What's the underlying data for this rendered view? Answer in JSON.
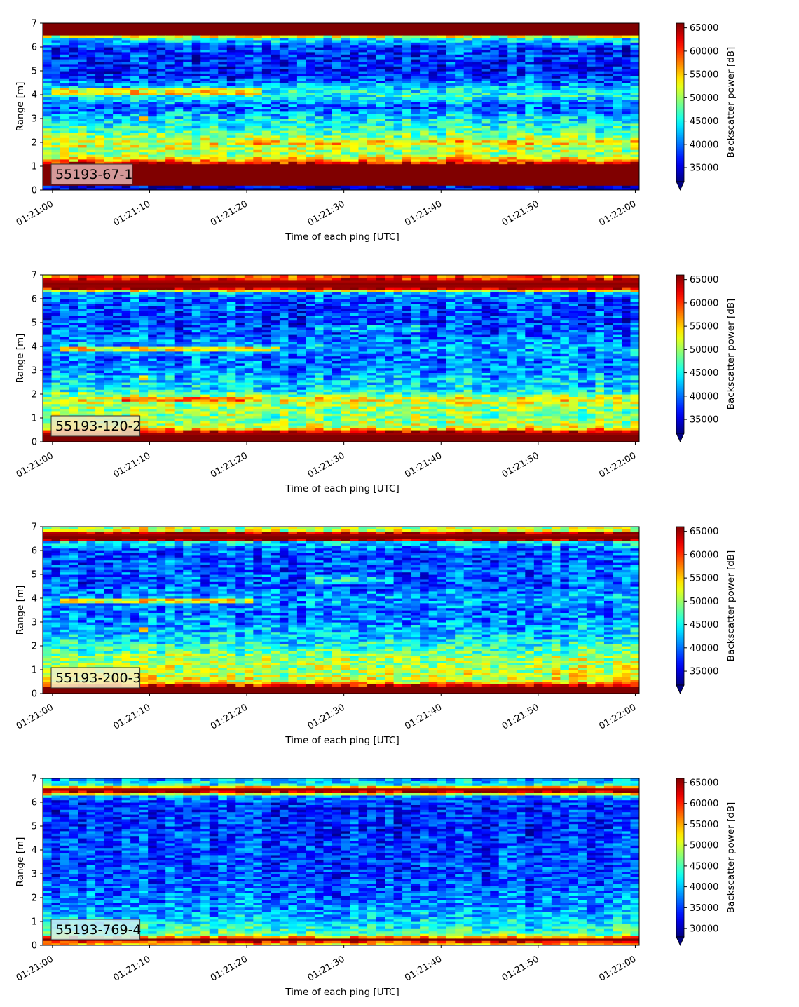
{
  "figure": {
    "xlabel": "Time of each ping [UTC]",
    "ylabel": "Range [m]",
    "cbar_label": "Backscatter power [dB]"
  },
  "chart_data": [
    {
      "type": "heatmap",
      "label": "55193-67-1",
      "x_ticks": [
        "01:21:00",
        "01:21:10",
        "01:21:20",
        "01:21:30",
        "01:21:40",
        "01:21:50",
        "01:22:00"
      ],
      "xlim_seconds": [
        -1,
        60.4
      ],
      "y_ticks": [
        0,
        1,
        2,
        3,
        4,
        5,
        6,
        7
      ],
      "ylim": [
        0,
        7
      ],
      "colormap": "jet",
      "clim": [
        32000,
        66000
      ],
      "cbar_ticks": [
        35000,
        40000,
        45000,
        50000,
        55000,
        60000,
        65000
      ],
      "label_box_color": "#e3b3b3",
      "range_profile_m": [
        [
          0.0,
          33000
        ],
        [
          0.15,
          35000
        ],
        [
          0.25,
          66000
        ],
        [
          1.1,
          66000
        ],
        [
          1.2,
          58000
        ],
        [
          1.5,
          50000
        ],
        [
          2.0,
          52000
        ],
        [
          2.5,
          47000
        ],
        [
          3.0,
          44000
        ],
        [
          3.5,
          39000
        ],
        [
          4.0,
          46000
        ],
        [
          4.3,
          44000
        ],
        [
          4.6,
          39000
        ],
        [
          5.0,
          37000
        ],
        [
          6.0,
          38000
        ],
        [
          6.35,
          45000
        ],
        [
          6.5,
          55000
        ],
        [
          6.55,
          66000
        ],
        [
          7.0,
          66000
        ]
      ],
      "features": [
        {
          "range_m": 4.15,
          "amplitude": 8000,
          "t_start": 0,
          "t_end": 22
        },
        {
          "range_m": 2.0,
          "amplitude": 3000,
          "t_start": 20,
          "t_end": 60
        },
        {
          "range_m": 3.0,
          "amplitude": 9000,
          "t_start": 8.5,
          "t_end": 9.5
        }
      ]
    },
    {
      "type": "heatmap",
      "label": "55193-120-2",
      "x_ticks": [
        "01:21:00",
        "01:21:10",
        "01:21:20",
        "01:21:30",
        "01:21:40",
        "01:21:50",
        "01:22:00"
      ],
      "xlim_seconds": [
        -1,
        60.4
      ],
      "y_ticks": [
        0,
        1,
        2,
        3,
        4,
        5,
        6,
        7
      ],
      "ylim": [
        0,
        7
      ],
      "colormap": "jet",
      "clim": [
        32000,
        66000
      ],
      "cbar_ticks": [
        35000,
        40000,
        45000,
        50000,
        55000,
        60000,
        65000
      ],
      "label_box_color": "#f2e8c2",
      "range_profile_m": [
        [
          0.0,
          66000
        ],
        [
          0.3,
          66000
        ],
        [
          0.45,
          63000
        ],
        [
          0.6,
          52000
        ],
        [
          1.0,
          49000
        ],
        [
          1.5,
          50000
        ],
        [
          1.8,
          53000
        ],
        [
          2.2,
          44000
        ],
        [
          2.6,
          43000
        ],
        [
          3.0,
          41000
        ],
        [
          3.5,
          40000
        ],
        [
          4.0,
          42000
        ],
        [
          4.5,
          39000
        ],
        [
          5.0,
          38000
        ],
        [
          6.0,
          39000
        ],
        [
          6.3,
          42000
        ],
        [
          6.4,
          63000
        ],
        [
          6.6,
          66000
        ],
        [
          6.8,
          64000
        ],
        [
          7.0,
          56000
        ]
      ],
      "features": [
        {
          "range_m": 3.9,
          "amplitude": 11000,
          "t_start": 1,
          "t_end": 23
        },
        {
          "range_m": 1.8,
          "amplitude": 6000,
          "t_start": 7,
          "t_end": 20
        },
        {
          "range_m": 2.7,
          "amplitude": 12000,
          "t_start": 8.7,
          "t_end": 9.6
        },
        {
          "range_m": 4.75,
          "amplitude": 4000,
          "t_start": 27,
          "t_end": 38
        }
      ]
    },
    {
      "type": "heatmap",
      "label": "55193-200-3",
      "x_ticks": [
        "01:21:00",
        "01:21:10",
        "01:21:20",
        "01:21:30",
        "01:21:40",
        "01:21:50",
        "01:22:00"
      ],
      "xlim_seconds": [
        -1,
        60.4
      ],
      "y_ticks": [
        0,
        1,
        2,
        3,
        4,
        5,
        6,
        7
      ],
      "ylim": [
        0,
        7
      ],
      "colormap": "jet",
      "clim": [
        32000,
        66000
      ],
      "cbar_ticks": [
        35000,
        40000,
        45000,
        50000,
        55000,
        60000,
        65000
      ],
      "label_box_color": "#f5f0c8",
      "range_profile_m": [
        [
          0.0,
          66000
        ],
        [
          0.3,
          66000
        ],
        [
          0.4,
          58000
        ],
        [
          0.55,
          52000
        ],
        [
          1.0,
          51000
        ],
        [
          1.5,
          50000
        ],
        [
          2.0,
          46000
        ],
        [
          2.5,
          43000
        ],
        [
          3.0,
          41000
        ],
        [
          3.5,
          40000
        ],
        [
          4.0,
          42000
        ],
        [
          4.5,
          39000
        ],
        [
          5.0,
          39000
        ],
        [
          6.0,
          39000
        ],
        [
          6.35,
          44000
        ],
        [
          6.45,
          64000
        ],
        [
          6.55,
          66000
        ],
        [
          6.75,
          64000
        ],
        [
          6.85,
          52000
        ],
        [
          7.0,
          50000
        ]
      ],
      "features": [
        {
          "range_m": 3.9,
          "amplitude": 11000,
          "t_start": 1,
          "t_end": 21
        },
        {
          "range_m": 4.75,
          "amplitude": 5000,
          "t_start": 26,
          "t_end": 35
        },
        {
          "range_m": 2.7,
          "amplitude": 10000,
          "t_start": 8.7,
          "t_end": 9.5
        }
      ]
    },
    {
      "type": "heatmap",
      "label": "55193-769-4",
      "x_ticks": [
        "01:21:00",
        "01:21:10",
        "01:21:20",
        "01:21:30",
        "01:21:40",
        "01:21:50",
        "01:22:00"
      ],
      "xlim_seconds": [
        -1,
        60.4
      ],
      "y_ticks": [
        0,
        1,
        2,
        3,
        4,
        5,
        6,
        7
      ],
      "ylim": [
        0,
        7
      ],
      "colormap": "jet",
      "clim": [
        28000,
        66000
      ],
      "cbar_ticks": [
        30000,
        35000,
        40000,
        45000,
        50000,
        55000,
        60000,
        65000
      ],
      "label_box_color": "#cfeef2",
      "range_profile_m": [
        [
          0.0,
          54000
        ],
        [
          0.1,
          54000
        ],
        [
          0.2,
          66000
        ],
        [
          0.3,
          66000
        ],
        [
          0.38,
          48000
        ],
        [
          0.6,
          44000
        ],
        [
          1.0,
          41000
        ],
        [
          1.5,
          38000
        ],
        [
          2.0,
          37000
        ],
        [
          3.0,
          35000
        ],
        [
          4.0,
          35000
        ],
        [
          5.0,
          34000
        ],
        [
          6.0,
          34000
        ],
        [
          6.3,
          40000
        ],
        [
          6.4,
          62000
        ],
        [
          6.5,
          66000
        ],
        [
          6.6,
          63000
        ],
        [
          6.7,
          44000
        ],
        [
          7.0,
          38000
        ]
      ],
      "features": []
    }
  ]
}
